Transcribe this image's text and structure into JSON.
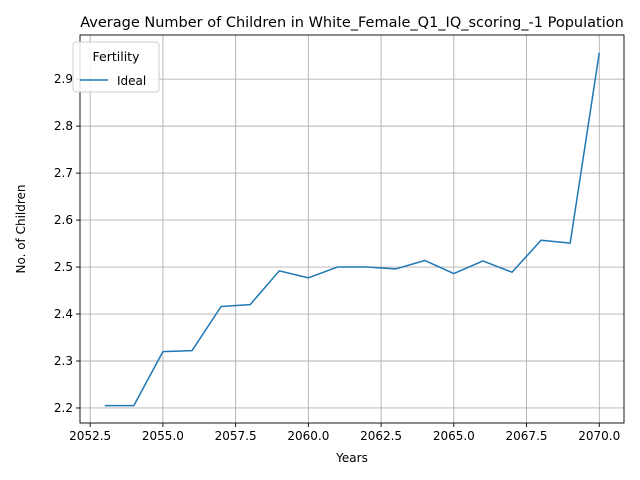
{
  "chart_data": {
    "type": "line",
    "title": "Average Number of Children in White_Female_Q1_IQ_scoring_-1 Population",
    "xlabel": "Years",
    "ylabel": "No. of Children",
    "xlim": [
      2052.15,
      2070.85
    ],
    "ylim": [
      2.168,
      2.994
    ],
    "x_ticks": [
      2052.5,
      2055.0,
      2057.5,
      2060.0,
      2062.5,
      2065.0,
      2067.5,
      2070.0
    ],
    "x_tick_labels": [
      "2052.5",
      "2055.0",
      "2057.5",
      "2060.0",
      "2062.5",
      "2065.0",
      "2067.5",
      "2070.0"
    ],
    "y_ticks": [
      2.2,
      2.3,
      2.4,
      2.5,
      2.6,
      2.7,
      2.8,
      2.9
    ],
    "y_tick_labels": [
      "2.2",
      "2.3",
      "2.4",
      "2.5",
      "2.6",
      "2.7",
      "2.8",
      "2.9"
    ],
    "grid": true,
    "legend": {
      "title": "Fertility",
      "placement": "top-left"
    },
    "series": [
      {
        "name": "Ideal",
        "color": "#1f77b4",
        "x": [
          2053,
          2054,
          2055,
          2056,
          2057,
          2058,
          2059,
          2060,
          2061,
          2062,
          2063,
          2064,
          2065,
          2066,
          2067,
          2068,
          2069,
          2070
        ],
        "y": [
          2.205,
          2.205,
          2.32,
          2.322,
          2.416,
          2.42,
          2.492,
          2.477,
          2.5,
          2.5,
          2.496,
          2.514,
          2.486,
          2.513,
          2.489,
          2.557,
          2.551,
          2.956
        ]
      }
    ]
  }
}
